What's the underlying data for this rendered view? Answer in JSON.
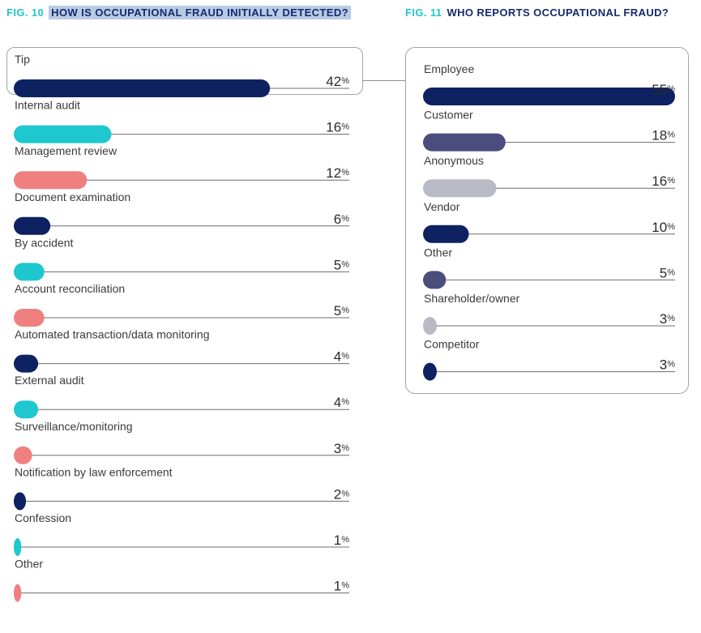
{
  "fig10": {
    "number": "FIG. 10",
    "title": "HOW IS OCCUPATIONAL FRAUD INITIALLY DETECTED?"
  },
  "fig11": {
    "number": "FIG. 11",
    "title": "WHO REPORTS OCCUPATIONAL FRAUD?"
  },
  "chart_data": [
    {
      "type": "bar",
      "orientation": "horizontal",
      "categories": [
        "Tip",
        "Internal audit",
        "Management review",
        "Document examination",
        "By accident",
        "Account reconciliation",
        "Automated transaction/data monitoring",
        "External audit",
        "Surveillance/monitoring",
        "Notification by law enforcement",
        "Confession",
        "Other"
      ],
      "values": [
        42,
        16,
        12,
        6,
        5,
        5,
        4,
        4,
        3,
        2,
        1,
        1
      ],
      "value_labels": [
        "42%",
        "16%",
        "12%",
        "6%",
        "5%",
        "5%",
        "4%",
        "4%",
        "3%",
        "2%",
        "1%",
        "1%"
      ],
      "bar_colors": [
        "#0e2161",
        "#1fc7cf",
        "#f08080",
        "#0e2161",
        "#1fc7cf",
        "#f08080",
        "#0e2161",
        "#1fc7cf",
        "#f08080",
        "#0e2161",
        "#1fc7cf",
        "#f08080"
      ],
      "xlim": [
        0,
        55
      ],
      "highlight": "Tip"
    },
    {
      "type": "bar",
      "orientation": "horizontal",
      "categories": [
        "Employee",
        "Customer",
        "Anonymous",
        "Vendor",
        "Other",
        "Shareholder/owner",
        "Competitor"
      ],
      "values": [
        55,
        18,
        16,
        10,
        5,
        3,
        3
      ],
      "value_labels": [
        "55%",
        "18%",
        "16%",
        "10%",
        "5%",
        "3%",
        "3%"
      ],
      "bar_colors": [
        "#0e2161",
        "#4a4d7e",
        "#b8bac6",
        "#0e2161",
        "#4a4d7e",
        "#b8bac6",
        "#0e2161"
      ],
      "xlim": [
        0,
        55
      ]
    }
  ]
}
